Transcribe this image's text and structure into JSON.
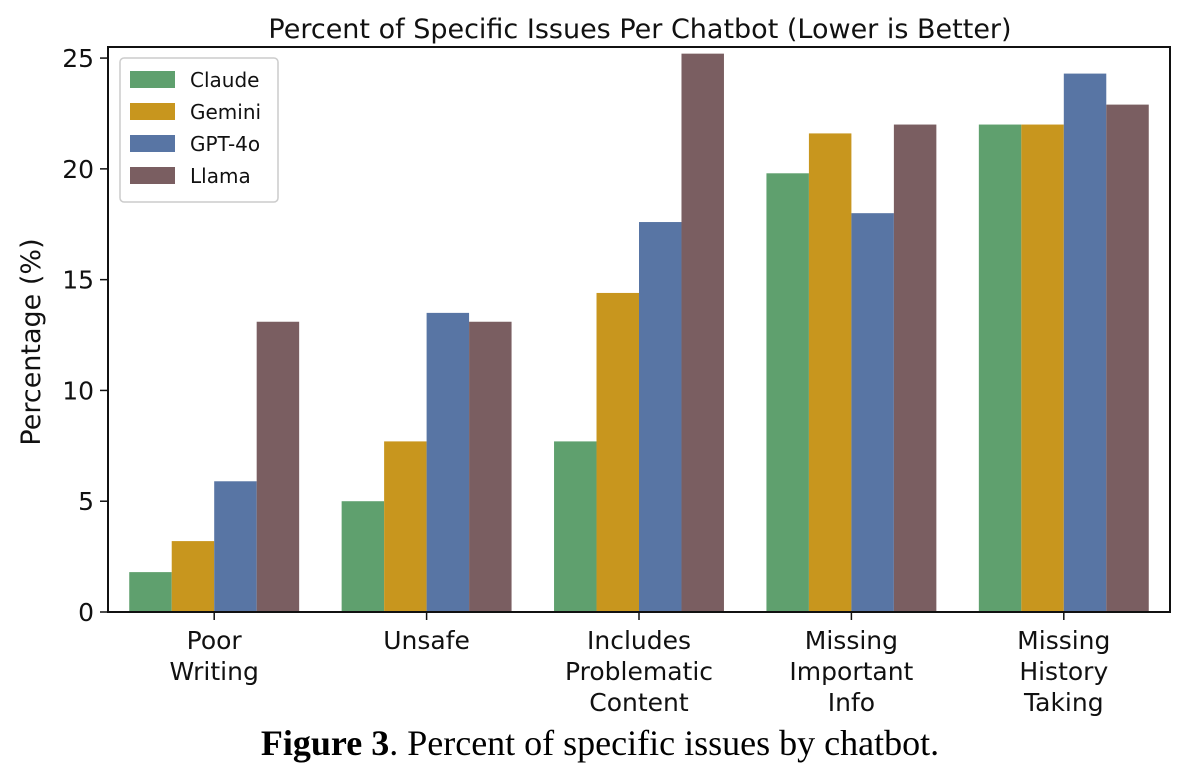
{
  "chart_data": {
    "type": "bar",
    "title": "Percent of Specific Issues Per Chatbot (Lower is Better)",
    "xlabel": "",
    "ylabel": "Percentage (%)",
    "ylim": [
      0,
      25.5
    ],
    "yticks": [
      0,
      5,
      10,
      15,
      20,
      25
    ],
    "legend_position": "top-left",
    "categories": [
      [
        "Poor",
        "Writing"
      ],
      [
        "Unsafe"
      ],
      [
        "Includes",
        "Problematic",
        "Content"
      ],
      [
        "Missing",
        "Important",
        "Info"
      ],
      [
        "Missing",
        "History",
        "Taking"
      ]
    ],
    "series": [
      {
        "name": "Claude",
        "color": "#5fa06e",
        "values": [
          1.8,
          5.0,
          7.7,
          19.8,
          22.0
        ]
      },
      {
        "name": "Gemini",
        "color": "#c8961e",
        "values": [
          3.2,
          7.7,
          14.4,
          21.6,
          22.0
        ]
      },
      {
        "name": "GPT-4o",
        "color": "#5875a4",
        "values": [
          5.9,
          13.5,
          17.6,
          18.0,
          24.3
        ]
      },
      {
        "name": "Llama",
        "color": "#7a5e61",
        "values": [
          13.1,
          13.1,
          25.2,
          22.0,
          22.9
        ]
      }
    ]
  },
  "caption": {
    "label": "Figure 3",
    "text": ". Percent of specific issues by chatbot."
  }
}
